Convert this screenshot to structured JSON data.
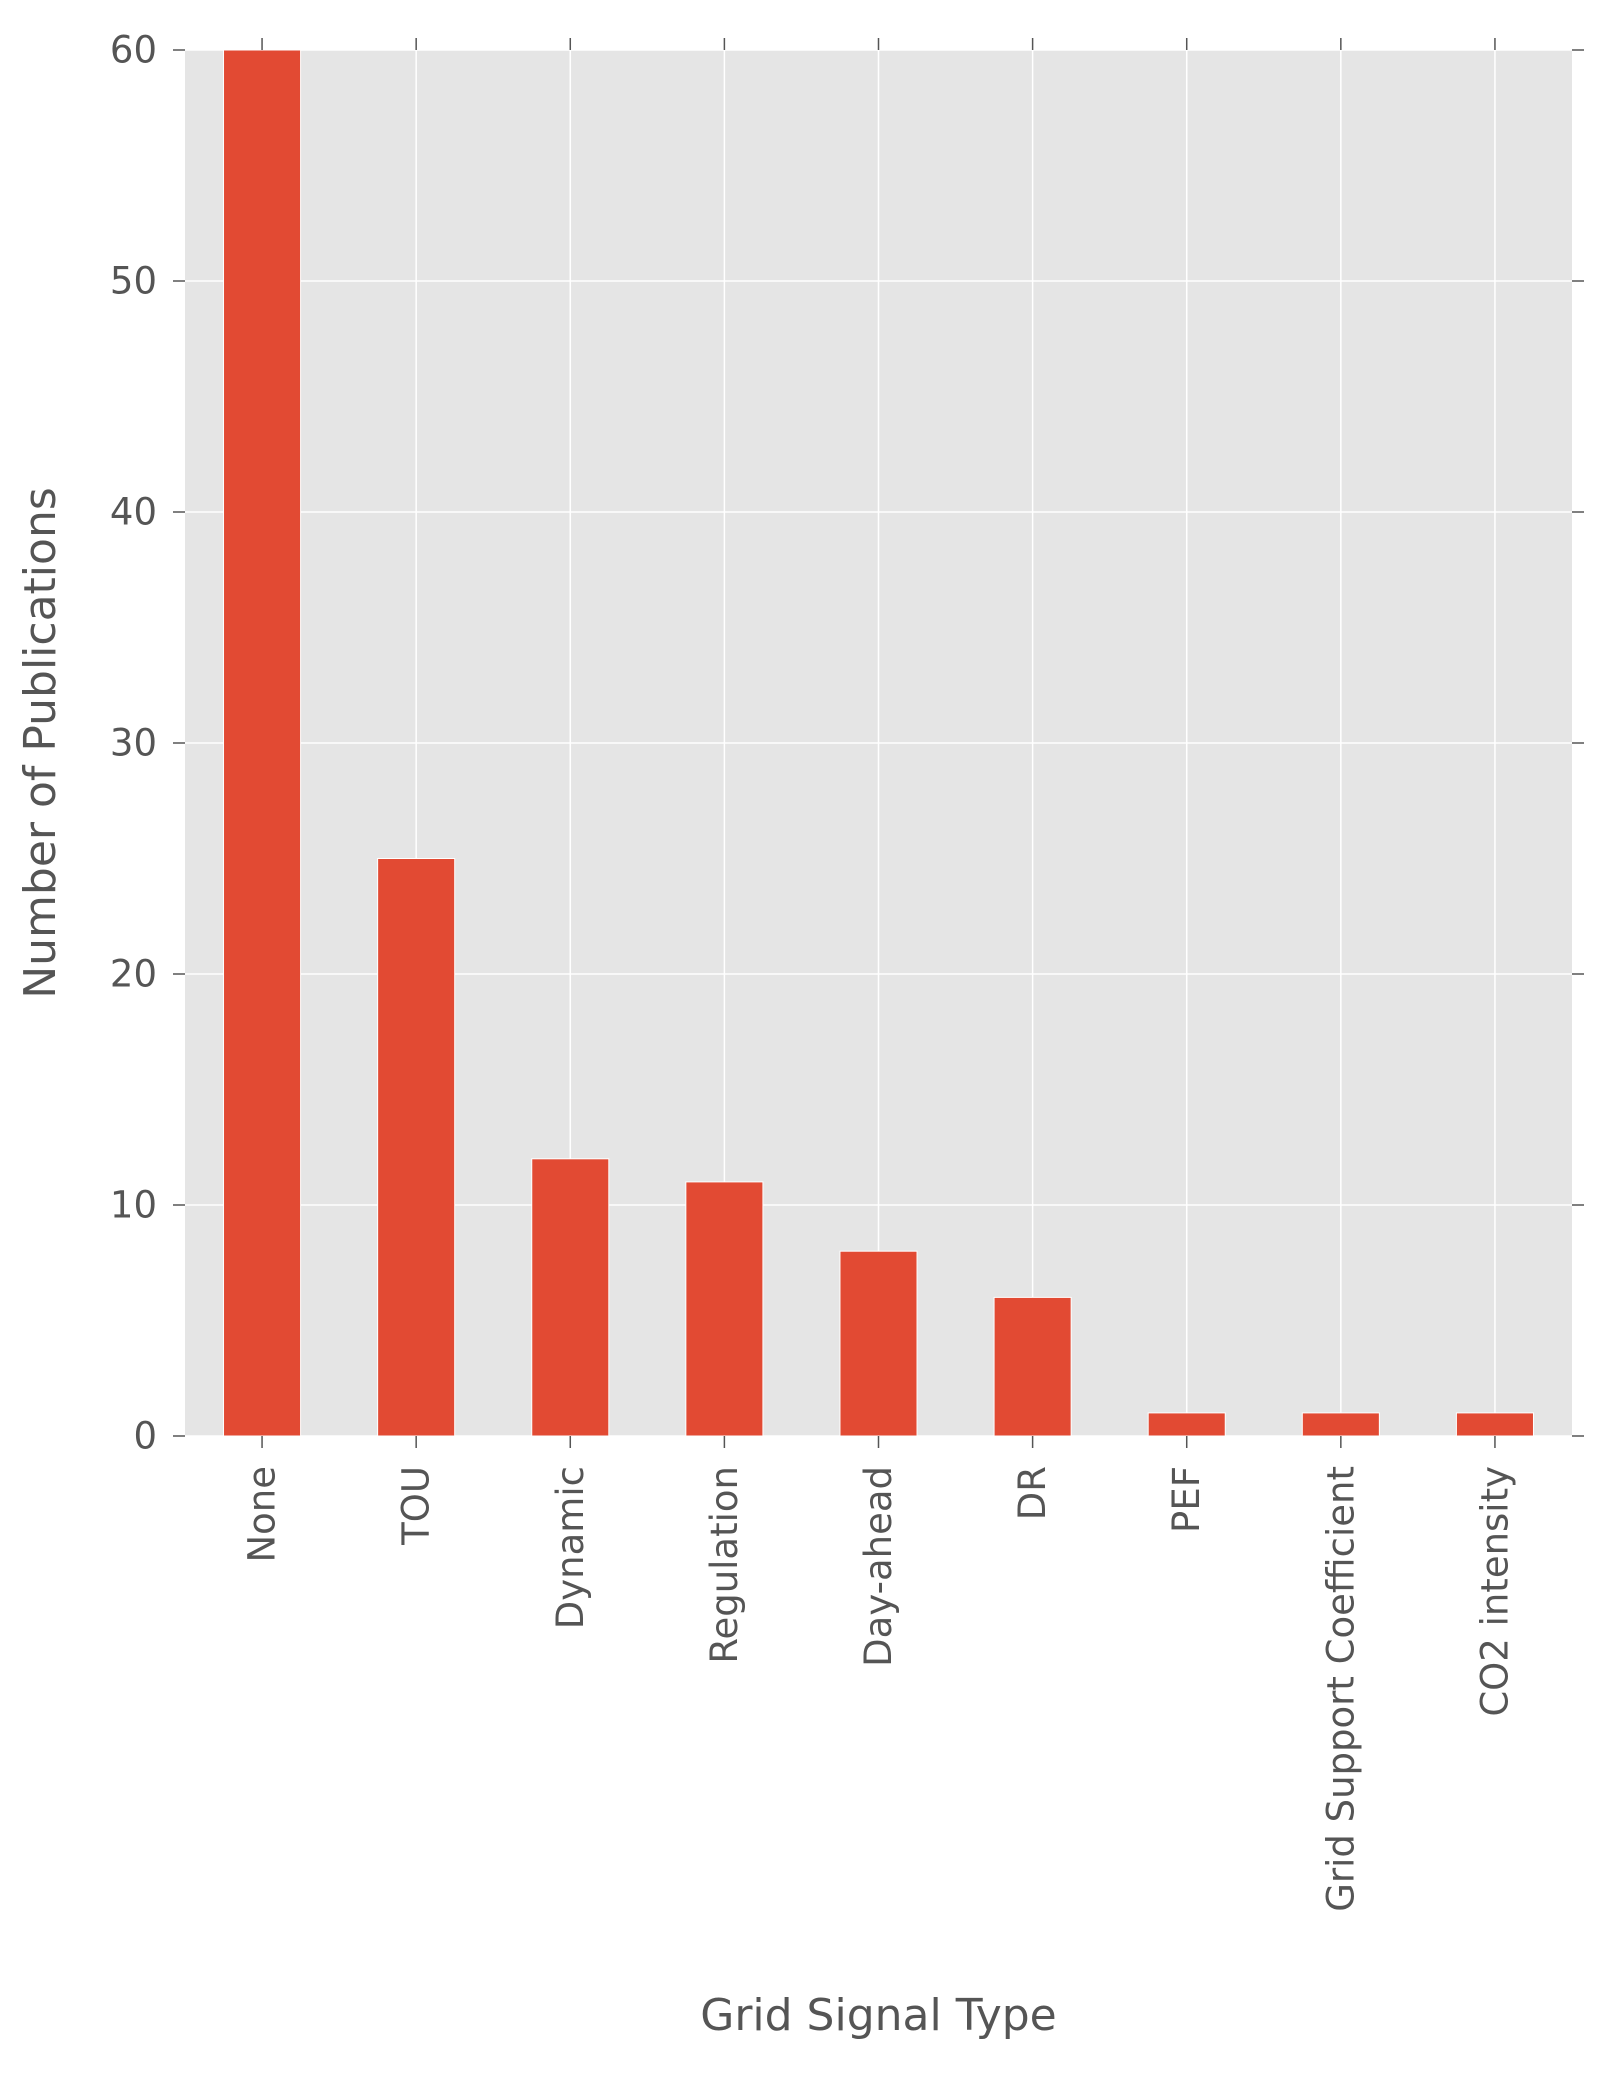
{
  "chart_data": {
    "type": "bar",
    "title": "",
    "xlabel": "Grid Signal Type",
    "ylabel": "Number of Publications",
    "categories": [
      "None",
      "TOU",
      "Dynamic",
      "Regulation",
      "Day-ahead",
      "DR",
      "PEF",
      "Grid Support Coefficient",
      "CO2 intensity"
    ],
    "values": [
      60,
      25,
      12,
      11,
      8,
      6,
      1,
      1,
      1
    ],
    "ylim": [
      0,
      60
    ],
    "yticks": [
      0,
      10,
      20,
      30,
      40,
      50,
      60
    ],
    "grid": true,
    "legend": "none",
    "colors": {
      "bar": "#E24A33",
      "plot_background": "#E5E5E5",
      "grid": "#FFFFFF",
      "text": "#555555",
      "tick": "#555555"
    }
  }
}
